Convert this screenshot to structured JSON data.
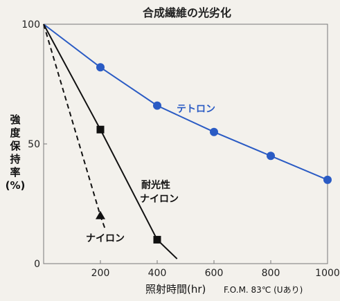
{
  "chart_data": {
    "type": "line",
    "title": "合成繊維の光劣化",
    "ylabel": {
      "chars": [
        "強",
        "度",
        "保",
        "持",
        "率"
      ],
      "unit": "(%)"
    },
    "xlabel": "照射時間(hr)",
    "xlabel_note": "F.O.M. 83℃ (Uあり)",
    "xlim": [
      0,
      1000
    ],
    "ylim": [
      0,
      100
    ],
    "x_ticks": [
      200,
      400,
      600,
      800,
      1000
    ],
    "y_ticks": [
      0,
      50,
      100
    ],
    "series": [
      {
        "name": "テトロン",
        "color": "#2a5bc4",
        "style": "solid",
        "marker": "circle",
        "points": [
          {
            "x": 0,
            "y": 100,
            "marker": false
          },
          {
            "x": 200,
            "y": 82
          },
          {
            "x": 400,
            "y": 66
          },
          {
            "x": 600,
            "y": 55
          },
          {
            "x": 800,
            "y": 45
          },
          {
            "x": 1000,
            "y": 35
          }
        ]
      },
      {
        "name_lines": [
          "耐光性",
          "ナイロン"
        ],
        "color": "#111111",
        "style": "solid",
        "marker": "square",
        "points": [
          {
            "x": 0,
            "y": 100,
            "marker": false
          },
          {
            "x": 200,
            "y": 56
          },
          {
            "x": 400,
            "y": 10
          },
          {
            "x": 470,
            "y": 2,
            "marker": false
          }
        ]
      },
      {
        "name": "ナイロン",
        "color": "#111111",
        "style": "dashed",
        "marker": "triangle",
        "points": [
          {
            "x": 0,
            "y": 100,
            "marker": false
          },
          {
            "x": 200,
            "y": 20
          },
          {
            "x": 215,
            "y": 15,
            "marker": false
          }
        ]
      }
    ]
  }
}
